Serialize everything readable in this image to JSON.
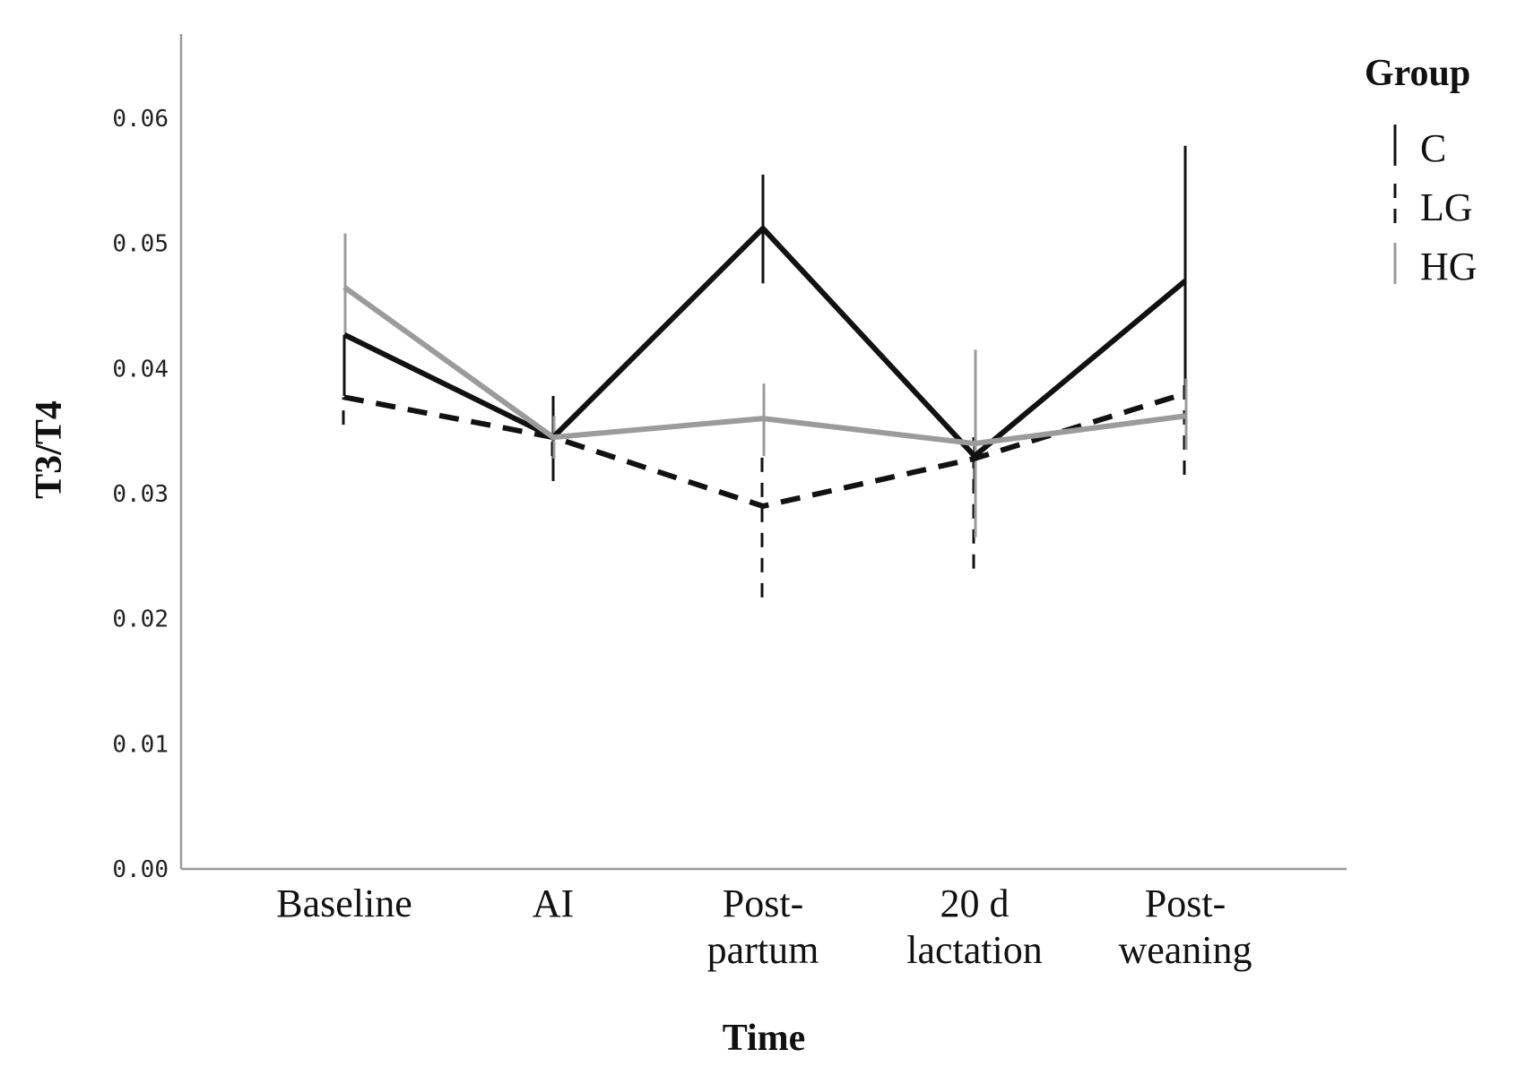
{
  "chart_data": {
    "type": "line",
    "xlabel": "Time",
    "ylabel": "T3/T4",
    "categories": [
      [
        "Baseline"
      ],
      [
        "AI"
      ],
      [
        "Post-",
        "partum"
      ],
      [
        "20 d",
        "lactation"
      ],
      [
        "Post-",
        "weaning"
      ]
    ],
    "ylim": [
      0,
      0.067
    ],
    "yticks": [
      0.0,
      0.01,
      0.02,
      0.03,
      0.04,
      0.05,
      0.06
    ],
    "ytick_labels": [
      "0.00",
      "0.01",
      "0.02",
      "0.03",
      "0.04",
      "0.05",
      "0.06"
    ],
    "grid": false,
    "legend": {
      "title": "Group",
      "placement": "top-right"
    },
    "series": [
      {
        "name": "C",
        "style": "solid",
        "color": "#111111",
        "values": [
          0.0427,
          0.0345,
          0.0512,
          0.033,
          0.047
        ],
        "err_low": [
          0.0378,
          0.031,
          0.0468,
          0.03,
          0.0382
        ],
        "err_high": [
          0.0427,
          0.0378,
          0.0555,
          0.0345,
          0.0578
        ]
      },
      {
        "name": "LG",
        "style": "dashed",
        "color": "#111111",
        "values": [
          0.0377,
          0.0345,
          0.029,
          0.0328,
          0.038
        ],
        "err_low": [
          0.0355,
          0.033,
          0.0217,
          0.024,
          0.0315
        ],
        "err_high": [
          0.0377,
          0.035,
          0.0335,
          0.0345,
          0.0395
        ]
      },
      {
        "name": "HG",
        "style": "solid",
        "color": "#9c9a9a",
        "values": [
          0.0465,
          0.0345,
          0.036,
          0.034,
          0.0362
        ],
        "err_low": [
          0.0428,
          0.0328,
          0.033,
          0.0265,
          0.0335
        ],
        "err_high": [
          0.0508,
          0.0362,
          0.0388,
          0.0415,
          0.0392
        ]
      }
    ]
  }
}
